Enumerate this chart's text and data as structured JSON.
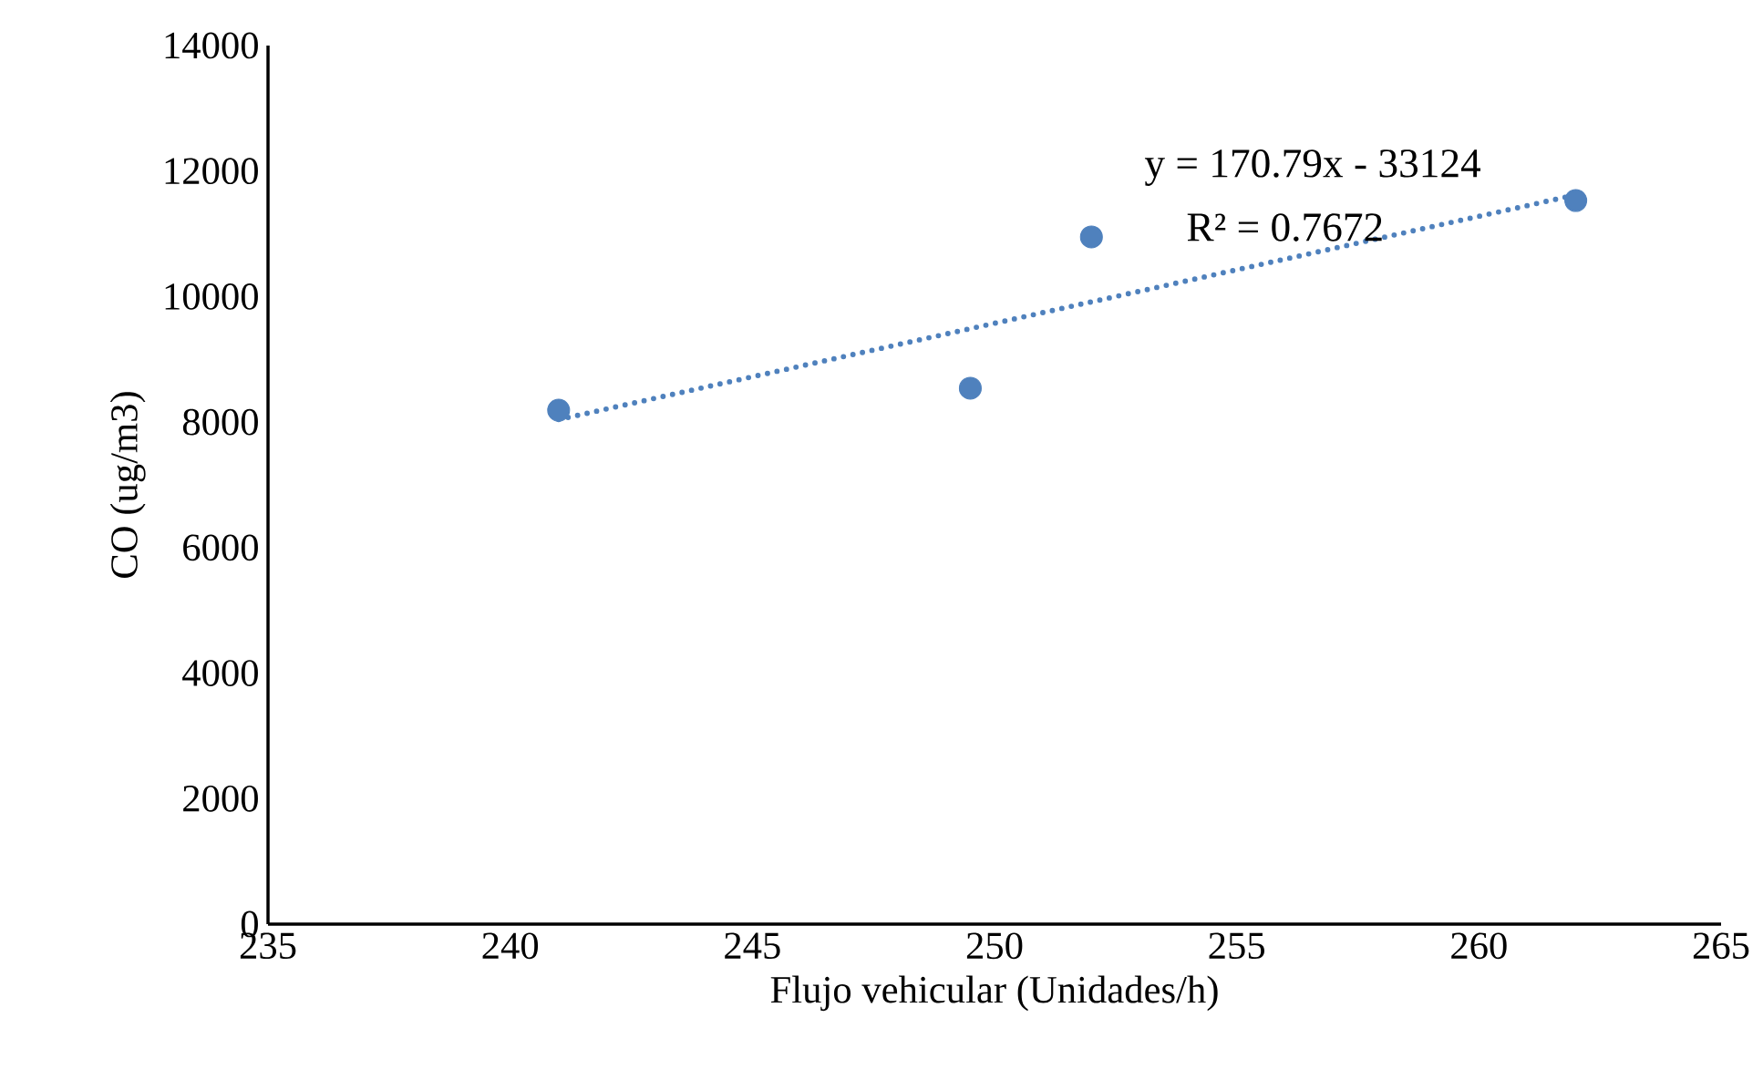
{
  "chart_data": {
    "type": "scatter",
    "xlabel": "Flujo vehicular (Unidades/h)",
    "ylabel": "CO (ug/m3)",
    "x": [
      241,
      249.5,
      252,
      262
    ],
    "series": [
      {
        "color": "#4f81bd",
        "values": [
          8190,
          8540,
          10950,
          11530
        ],
        "marker": "circle"
      },
      {
        "type": "line",
        "color": "#4f81bd",
        "x": [
          241,
          262
        ],
        "values": [
          8040,
          11620
        ],
        "line_style": "dotted",
        "marker": "none"
      }
    ],
    "xlim": [
      235,
      265
    ],
    "ylim": [
      0,
      14000
    ],
    "xticks": [
      235,
      240,
      245,
      250,
      255,
      260,
      265
    ],
    "yticks": [
      0,
      2000,
      4000,
      6000,
      8000,
      10000,
      12000,
      14000
    ],
    "grid": false,
    "annotations": [
      "y = 170.79x - 33124",
      "R² = 0.7672"
    ]
  }
}
